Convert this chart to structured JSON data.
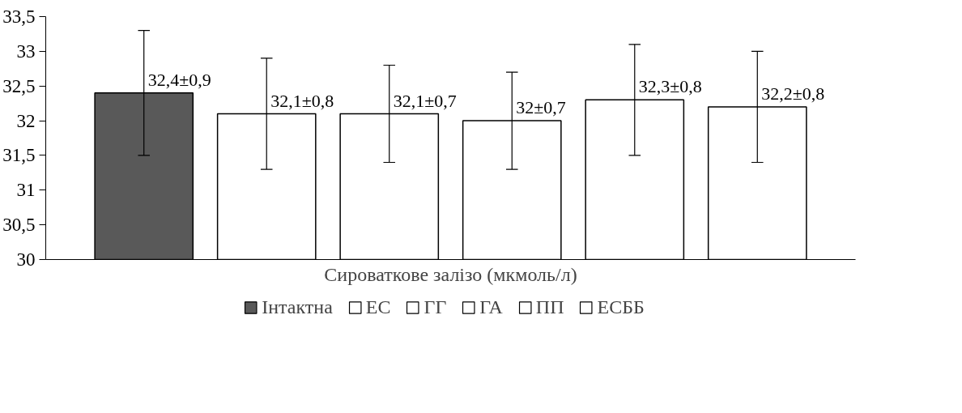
{
  "chart_data": {
    "type": "bar",
    "xlabel": "Сироваткове залізо (мкмоль/л)",
    "categories": [
      null
    ],
    "ylim": [
      30,
      33.5
    ],
    "yticks": [
      {
        "value": 30,
        "label": "30"
      },
      {
        "value": 30.5,
        "label": "30,5"
      },
      {
        "value": 31,
        "label": "31"
      },
      {
        "value": 31.5,
        "label": "31,5"
      },
      {
        "value": 32,
        "label": "32"
      },
      {
        "value": 32.5,
        "label": "32,5"
      },
      {
        "value": 33,
        "label": "33"
      },
      {
        "value": 33.5,
        "label": "33,5"
      }
    ],
    "series": [
      {
        "name": "Інтактна",
        "color": "#595959",
        "values": [
          32.4
        ],
        "errors": [
          0.9
        ],
        "value_labels": [
          "32,4±0,9"
        ]
      },
      {
        "name": "ЕС",
        "color": "#ffffff",
        "values": [
          32.1
        ],
        "errors": [
          0.8
        ],
        "value_labels": [
          "32,1±0,8"
        ]
      },
      {
        "name": "ГГ",
        "color": "#ffffff",
        "values": [
          32.1
        ],
        "errors": [
          0.7
        ],
        "value_labels": [
          "32,1±0,7"
        ]
      },
      {
        "name": "ГА",
        "color": "#ffffff",
        "values": [
          32.0
        ],
        "errors": [
          0.7
        ],
        "value_labels": [
          "32±0,7"
        ]
      },
      {
        "name": "ПП",
        "color": "#ffffff",
        "values": [
          32.3
        ],
        "errors": [
          0.8
        ],
        "value_labels": [
          "32,3±0,8"
        ]
      },
      {
        "name": "ЕСББ",
        "color": "#ffffff",
        "values": [
          32.2
        ],
        "errors": [
          0.8
        ],
        "value_labels": [
          "32,2±0,8"
        ]
      }
    ],
    "grid": false,
    "legend": "bottom"
  }
}
